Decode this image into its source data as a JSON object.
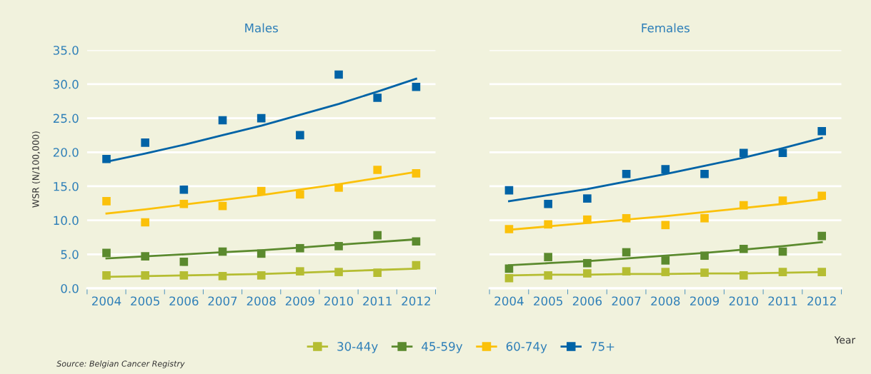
{
  "chart_data": [
    {
      "type": "scatter",
      "title": "Males",
      "ylabel": "WSR (N/100,000)",
      "categories": [
        "2004",
        "2005",
        "2006",
        "2007",
        "2008",
        "2009",
        "2010",
        "2011",
        "2012"
      ],
      "ylim": [
        0,
        35
      ],
      "yticks": [
        {
          "value": 0,
          "label": "0.0"
        },
        {
          "value": 5,
          "label": "5.0"
        },
        {
          "value": 10,
          "label": "10.0"
        },
        {
          "value": 15,
          "label": "15.0"
        },
        {
          "value": 20,
          "label": "20.0"
        },
        {
          "value": 25,
          "label": "25.0"
        },
        {
          "value": 30,
          "label": "30.0"
        },
        {
          "value": 35,
          "label": "35.0"
        }
      ],
      "grid": "y",
      "legend": "bottom",
      "marker": "square",
      "annotations": [
        "Source: Belgian Cancer Registry"
      ],
      "series": [
        {
          "name": "30-44y",
          "color": "#b5bd32",
          "values": [
            1.9,
            1.9,
            1.9,
            1.8,
            1.9,
            2.5,
            2.4,
            2.3,
            3.4
          ]
        },
        {
          "name": "45-59y",
          "color": "#5b8a2e",
          "values": [
            5.2,
            4.7,
            3.9,
            5.4,
            5.1,
            5.9,
            6.2,
            7.8,
            6.9
          ]
        },
        {
          "name": "60-74y",
          "color": "#fbc10a",
          "values": [
            12.8,
            9.7,
            12.4,
            12.1,
            14.3,
            13.8,
            14.8,
            17.4,
            16.9
          ]
        },
        {
          "name": "75+",
          "color": "#0063a6",
          "values": [
            19.0,
            21.4,
            14.5,
            24.7,
            25.0,
            22.5,
            31.4,
            28.0,
            29.6
          ]
        },
        {
          "type": "line",
          "marker": "none",
          "color": "#b5bd32",
          "values": [
            1.7,
            1.8,
            1.9,
            2.0,
            2.1,
            2.3,
            2.5,
            2.7,
            2.9
          ]
        },
        {
          "type": "line",
          "marker": "none",
          "color": "#5b8a2e",
          "values": [
            4.4,
            4.7,
            5.0,
            5.3,
            5.6,
            6.0,
            6.4,
            6.8,
            7.2
          ]
        },
        {
          "type": "line",
          "marker": "none",
          "color": "#fbc10a",
          "values": [
            11.0,
            11.6,
            12.3,
            13.0,
            13.7,
            14.5,
            15.3,
            16.2,
            17.1
          ]
        },
        {
          "type": "line",
          "marker": "none",
          "color": "#0063a6",
          "values": [
            18.6,
            19.8,
            21.1,
            22.5,
            23.9,
            25.5,
            27.1,
            28.9,
            30.8
          ]
        }
      ]
    },
    {
      "type": "scatter",
      "title": "Females",
      "xlabel": "Year",
      "categories": [
        "2004",
        "2005",
        "2006",
        "2007",
        "2008",
        "2009",
        "2010",
        "2011",
        "2012"
      ],
      "ylim": [
        0,
        35
      ],
      "yticks": [
        {
          "value": 0,
          "label": null
        },
        {
          "value": 5,
          "label": null
        },
        {
          "value": 10,
          "label": null
        },
        {
          "value": 15,
          "label": null
        },
        {
          "value": 20,
          "label": null
        },
        {
          "value": 25,
          "label": null
        },
        {
          "value": 30,
          "label": null
        },
        {
          "value": 35,
          "label": null
        }
      ],
      "tick_labels": "x",
      "grid": "y",
      "marker": "square",
      "series": [
        {
          "color": "#b5bd32",
          "values": [
            1.5,
            1.9,
            2.2,
            2.5,
            2.4,
            2.3,
            1.9,
            2.4,
            2.4
          ]
        },
        {
          "color": "#5b8a2e",
          "values": [
            2.9,
            4.6,
            3.7,
            5.3,
            4.1,
            4.8,
            5.8,
            5.4,
            7.7
          ]
        },
        {
          "color": "#fbc10a",
          "values": [
            8.7,
            9.4,
            10.1,
            10.3,
            9.3,
            10.3,
            12.2,
            12.9,
            13.6
          ]
        },
        {
          "color": "#0063a6",
          "values": [
            14.4,
            12.4,
            13.2,
            16.8,
            17.5,
            16.8,
            19.9,
            19.9,
            23.1
          ]
        },
        {
          "type": "line",
          "marker": "none",
          "color": "#b5bd32",
          "values": [
            1.9,
            2.0,
            2.0,
            2.1,
            2.1,
            2.2,
            2.2,
            2.3,
            2.4
          ]
        },
        {
          "type": "line",
          "marker": "none",
          "color": "#5b8a2e",
          "values": [
            3.4,
            3.7,
            4.0,
            4.4,
            4.8,
            5.2,
            5.7,
            6.2,
            6.8
          ]
        },
        {
          "type": "line",
          "marker": "none",
          "color": "#fbc10a",
          "values": [
            8.6,
            9.1,
            9.6,
            10.1,
            10.6,
            11.2,
            11.8,
            12.4,
            13.1
          ]
        },
        {
          "type": "line",
          "marker": "none",
          "color": "#0063a6",
          "values": [
            12.8,
            13.7,
            14.6,
            15.7,
            16.8,
            18.0,
            19.2,
            20.6,
            22.1
          ]
        }
      ]
    }
  ]
}
